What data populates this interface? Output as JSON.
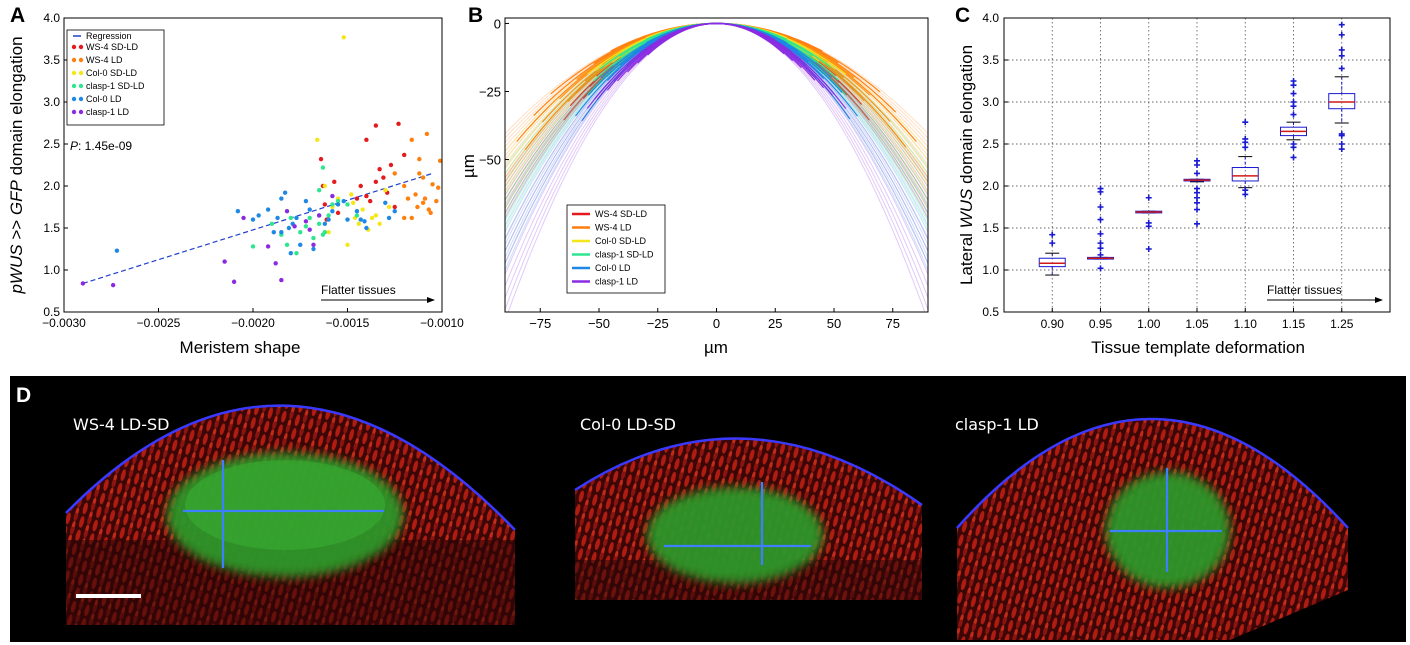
{
  "panels": {
    "A": "A",
    "B": "B",
    "C": "C",
    "D": "D"
  },
  "chart_data": [
    {
      "panel": "A",
      "type": "scatter",
      "xlabel": "Meristem shape",
      "ylabel_parts": [
        "p",
        "WUS",
        " >> ",
        "GFP",
        " domain elongation"
      ],
      "xlim": [
        -0.003,
        -0.001
      ],
      "ylim": [
        0.5,
        4.0
      ],
      "x_ticks": [
        "−0.0030",
        "−0.0025",
        "−0.0020",
        "−0.0015",
        "−0.0010"
      ],
      "y_ticks": [
        "0.5",
        "1.0",
        "1.5",
        "2.0",
        "2.5",
        "3.0",
        "3.5",
        "4.0"
      ],
      "legend": [
        "Regression",
        "WS-4 SD-LD",
        "WS-4 LD",
        "Col-0 SD-LD",
        "clasp-1 SD-LD",
        "Col-0 LD",
        "clasp-1 LD"
      ],
      "legend_placement": "top-left",
      "annotation_p_label": "P",
      "annotation_p_value": ": 1.45e-09",
      "annotation_arrow": "Flatter tissues",
      "regression": {
        "x": [
          -0.0029,
          -0.00105
        ],
        "y": [
          0.84,
          2.15
        ]
      },
      "series": [
        {
          "name": "WS-4 SD-LD",
          "color": "#e41a1c",
          "points": [
            [
              -0.00164,
              2.32
            ],
            [
              -0.00163,
              2.0
            ],
            [
              -0.00162,
              1.78
            ],
            [
              -0.00161,
              1.6
            ],
            [
              -0.00157,
              2.05
            ],
            [
              -0.00155,
              1.68
            ],
            [
              -0.00145,
              1.85
            ],
            [
              -0.00143,
              2.0
            ],
            [
              -0.0014,
              2.55
            ],
            [
              -0.00138,
              1.82
            ],
            [
              -0.00135,
              2.72
            ],
            [
              -0.00133,
              2.2
            ],
            [
              -0.00131,
              2.1
            ],
            [
              -0.00129,
              1.92
            ],
            [
              -0.00127,
              2.25
            ],
            [
              -0.00125,
              1.75
            ],
            [
              -0.00123,
              2.74
            ],
            [
              -0.0012,
              2.37
            ],
            [
              -0.00135,
              2.05
            ],
            [
              -0.0014,
              1.88
            ]
          ]
        },
        {
          "name": "WS-4 LD",
          "color": "#ff7f0e",
          "points": [
            [
              -0.00125,
              2.15
            ],
            [
              -0.0012,
              2.0
            ],
            [
              -0.00118,
              1.85
            ],
            [
              -0.00116,
              2.55
            ],
            [
              -0.00114,
              1.9
            ],
            [
              -0.00113,
              1.75
            ],
            [
              -0.00112,
              2.32
            ],
            [
              -0.0011,
              2.1
            ],
            [
              -0.00109,
              1.85
            ],
            [
              -0.00108,
              2.62
            ],
            [
              -0.00107,
              1.72
            ],
            [
              -0.00106,
              1.68
            ],
            [
              -0.00105,
              2.02
            ],
            [
              -0.00103,
              1.82
            ],
            [
              -0.00102,
              1.98
            ],
            [
              -0.00101,
              2.3
            ],
            [
              -0.0012,
              1.62
            ],
            [
              -0.00116,
              1.62
            ],
            [
              -0.0011,
              1.8
            ],
            [
              -0.00112,
              2.15
            ]
          ]
        },
        {
          "name": "Col-0 SD-LD",
          "color": "#f5e61a",
          "points": [
            [
              -0.00166,
              2.55
            ],
            [
              -0.00162,
              2.0
            ],
            [
              -0.0016,
              1.45
            ],
            [
              -0.00155,
              1.85
            ],
            [
              -0.00152,
              3.77
            ],
            [
              -0.0015,
              1.3
            ],
            [
              -0.00148,
              1.9
            ],
            [
              -0.00146,
              1.62
            ],
            [
              -0.00144,
              1.55
            ],
            [
              -0.00142,
              1.72
            ],
            [
              -0.00139,
              1.48
            ],
            [
              -0.00137,
              1.62
            ],
            [
              -0.00133,
              1.55
            ],
            [
              -0.0013,
              1.95
            ],
            [
              -0.00128,
              1.75
            ],
            [
              -0.00135,
              1.65
            ],
            [
              -0.00147,
              1.8
            ],
            [
              -0.00158,
              1.75
            ]
          ]
        },
        {
          "name": "clasp-1 SD-LD",
          "color": "#2ee68f",
          "points": [
            [
              -0.002,
              1.28
            ],
            [
              -0.0019,
              1.55
            ],
            [
              -0.00185,
              1.42
            ],
            [
              -0.00182,
              1.3
            ],
            [
              -0.0018,
              1.62
            ],
            [
              -0.00177,
              1.2
            ],
            [
              -0.00175,
              1.45
            ],
            [
              -0.00172,
              1.52
            ],
            [
              -0.0017,
              1.62
            ],
            [
              -0.00168,
              1.38
            ],
            [
              -0.00165,
              1.55
            ],
            [
              -0.00163,
              1.42
            ],
            [
              -0.00162,
              1.45
            ],
            [
              -0.0016,
              1.65
            ],
            [
              -0.00163,
              2.22
            ],
            [
              -0.00158,
              1.78
            ],
            [
              -0.00155,
              1.82
            ],
            [
              -0.0015,
              1.78
            ],
            [
              -0.00145,
              1.65
            ],
            [
              -0.00165,
              1.95
            ]
          ]
        },
        {
          "name": "Col-0 LD",
          "color": "#1e88e5",
          "points": [
            [
              -0.00272,
              1.23
            ],
            [
              -0.00208,
              1.7
            ],
            [
              -0.002,
              1.6
            ],
            [
              -0.00197,
              1.65
            ],
            [
              -0.00192,
              1.72
            ],
            [
              -0.00189,
              1.45
            ],
            [
              -0.00187,
              1.62
            ],
            [
              -0.00185,
              1.85
            ],
            [
              -0.00183,
              1.92
            ],
            [
              -0.00181,
              1.5
            ],
            [
              -0.00179,
              1.55
            ],
            [
              -0.00177,
              1.62
            ],
            [
              -0.00175,
              1.3
            ],
            [
              -0.00172,
              1.82
            ],
            [
              -0.0017,
              1.72
            ],
            [
              -0.00168,
              1.25
            ],
            [
              -0.00165,
              1.65
            ],
            [
              -0.00162,
              1.55
            ],
            [
              -0.0016,
              1.6
            ],
            [
              -0.00158,
              1.7
            ],
            [
              -0.00155,
              1.78
            ],
            [
              -0.00152,
              1.82
            ],
            [
              -0.0015,
              1.6
            ],
            [
              -0.00145,
              1.7
            ],
            [
              -0.00143,
              1.6
            ],
            [
              -0.00141,
              1.58
            ],
            [
              -0.0014,
              1.5
            ],
            [
              -0.0013,
              1.8
            ],
            [
              -0.00128,
              1.62
            ],
            [
              -0.00125,
              1.7
            ],
            [
              -0.00185,
              1.45
            ],
            [
              -0.0018,
              1.2
            ]
          ]
        },
        {
          "name": "clasp-1 LD",
          "color": "#8a2be2",
          "points": [
            [
              -0.0029,
              0.84
            ],
            [
              -0.00274,
              0.82
            ],
            [
              -0.00215,
              1.1
            ],
            [
              -0.0021,
              0.86
            ],
            [
              -0.00205,
              1.62
            ],
            [
              -0.00192,
              1.28
            ],
            [
              -0.00188,
              1.08
            ],
            [
              -0.00185,
              0.88
            ],
            [
              -0.00182,
              1.7
            ],
            [
              -0.00178,
              1.52
            ],
            [
              -0.00172,
              1.58
            ],
            [
              -0.00165,
              1.65
            ],
            [
              -0.00158,
              1.88
            ],
            [
              -0.0017,
              1.48
            ],
            [
              -0.00168,
              1.3
            ]
          ]
        }
      ]
    },
    {
      "panel": "B",
      "type": "line",
      "xlabel": "µm",
      "ylabel": "µm",
      "xlim": [
        -90,
        90
      ],
      "ylim": [
        -106,
        2
      ],
      "x_ticks": [
        "−75",
        "−50",
        "−25",
        "0",
        "25",
        "50",
        "75"
      ],
      "y_ticks": [
        "0",
        "−25",
        "−50"
      ],
      "legend": [
        "WS-4 SD-LD",
        "WS-4 LD",
        "Col-0 SD-LD",
        "clasp-1 SD-LD",
        "Col-0 LD",
        "clasp-1 LD"
      ],
      "legend_placement": "lower-left",
      "series": [
        {
          "name": "WS-4 SD-LD",
          "color": "#e41a1c",
          "coef_min": 0.007,
          "coef_max": 0.0088,
          "count": 10,
          "dark_half_width": [
            40,
            65
          ]
        },
        {
          "name": "WS-4 LD",
          "color": "#ff7f0e",
          "coef_min": 0.005,
          "coef_max": 0.0072,
          "count": 12,
          "dark_half_width": [
            45,
            85
          ]
        },
        {
          "name": "Col-0 SD-LD",
          "color": "#f5e61a",
          "coef_min": 0.0058,
          "coef_max": 0.0084,
          "count": 8,
          "dark_half_width": [
            30,
            55
          ]
        },
        {
          "name": "clasp-1 SD-LD",
          "color": "#2ee68f",
          "coef_min": 0.0065,
          "coef_max": 0.0093,
          "count": 10,
          "dark_half_width": [
            30,
            55
          ]
        },
        {
          "name": "Col-0 LD",
          "color": "#1e88e5",
          "coef_min": 0.008,
          "coef_max": 0.0112,
          "count": 12,
          "dark_half_width": [
            30,
            60
          ]
        },
        {
          "name": "clasp-1 LD",
          "color": "#8a2be2",
          "coef_min": 0.0098,
          "coef_max": 0.0135,
          "count": 8,
          "dark_half_width": [
            25,
            55
          ]
        }
      ]
    },
    {
      "panel": "C",
      "type": "box",
      "xlabel": "Tissue template deformation",
      "ylabel_parts": [
        "Lateral ",
        "WUS",
        " domain elongation"
      ],
      "ylim": [
        0.5,
        4.0
      ],
      "categories": [
        "0.90",
        "0.95",
        "1.00",
        "1.05",
        "1.10",
        "1.15",
        "1.25"
      ],
      "y_ticks": [
        "0.5",
        "1.0",
        "1.5",
        "2.0",
        "2.5",
        "3.0",
        "3.5",
        "4.0"
      ],
      "grid": true,
      "annotation_arrow": "Flatter tissues",
      "boxes": [
        {
          "q1": 1.04,
          "median": 1.08,
          "q3": 1.14,
          "wlo": 0.94,
          "whi": 1.2,
          "fliers": [
            1.32,
            1.42
          ]
        },
        {
          "q1": 1.13,
          "median": 1.14,
          "q3": 1.15,
          "wlo": 1.13,
          "whi": 1.15,
          "fliers": [
            1.02,
            1.18,
            1.26,
            1.32,
            1.43,
            1.6,
            1.75,
            1.93,
            1.97
          ]
        },
        {
          "q1": 1.68,
          "median": 1.69,
          "q3": 1.7,
          "wlo": 1.68,
          "whi": 1.7,
          "fliers": [
            1.25,
            1.52,
            1.56,
            1.86
          ]
        },
        {
          "q1": 2.06,
          "median": 2.07,
          "q3": 2.08,
          "wlo": 2.05,
          "whi": 2.08,
          "fliers": [
            1.55,
            1.72,
            1.8,
            1.86,
            1.92,
            1.97,
            2.15,
            2.25,
            2.3
          ]
        },
        {
          "q1": 2.06,
          "median": 2.12,
          "q3": 2.22,
          "wlo": 1.98,
          "whi": 2.35,
          "fliers": [
            1.9,
            1.95,
            2.46,
            2.52,
            2.56,
            2.76
          ]
        },
        {
          "q1": 2.6,
          "median": 2.65,
          "q3": 2.7,
          "wlo": 2.55,
          "whi": 2.76,
          "fliers": [
            2.34,
            2.46,
            2.5,
            2.85,
            2.95,
            3.0,
            3.1,
            3.2,
            3.25
          ]
        },
        {
          "q1": 2.92,
          "median": 3.0,
          "q3": 3.1,
          "wlo": 2.75,
          "whi": 3.3,
          "fliers": [
            2.44,
            2.5,
            2.6,
            2.62,
            3.4,
            3.55,
            3.62,
            3.8,
            3.92
          ]
        }
      ]
    }
  ],
  "micrographs": {
    "labels": [
      "WS-4 LD-SD",
      "Col-0 LD-SD",
      "clasp-1 LD"
    ]
  }
}
